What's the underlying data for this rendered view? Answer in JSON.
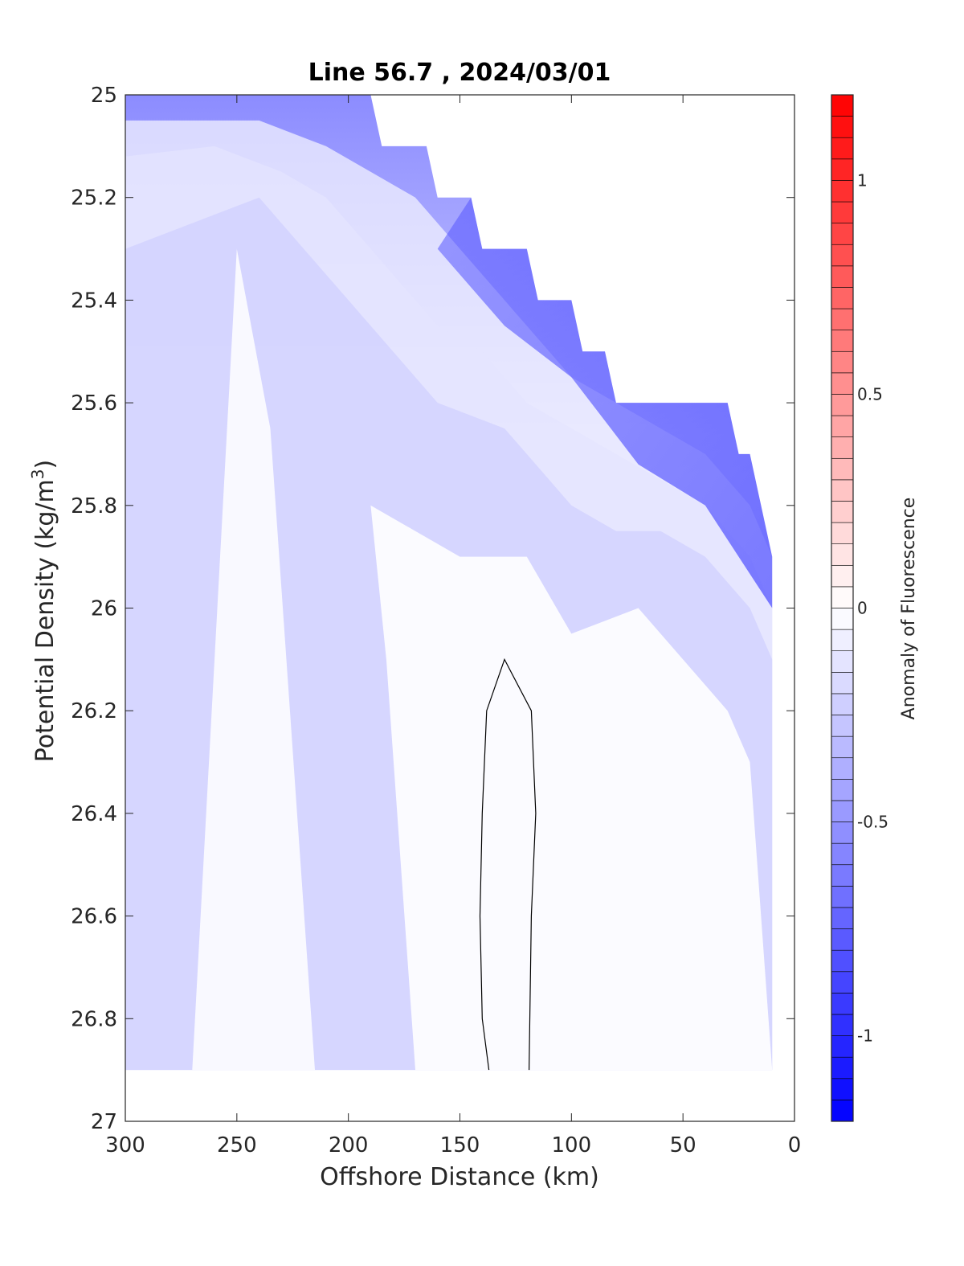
{
  "chart_data": {
    "type": "heatmap",
    "title": "Line 56.7 , 2024/03/01",
    "xlabel": "Offshore Distance (km)",
    "ylabel": "Potential Density (kg/m",
    "ylabel_sup": "3",
    "ylabel_end": ")",
    "xlim": [
      300,
      0
    ],
    "ylim": [
      25,
      27
    ],
    "x_ticks": [
      300,
      250,
      200,
      150,
      100,
      50,
      0
    ],
    "x_tick_labels": [
      "300",
      "250",
      "200",
      "150",
      "100",
      "50",
      "0"
    ],
    "y_ticks": [
      25,
      25.2,
      25.4,
      25.6,
      25.8,
      26,
      26.2,
      26.4,
      26.6,
      26.8,
      27
    ],
    "y_tick_labels": [
      "25",
      "25.2",
      "25.4",
      "25.6",
      "25.8",
      "26",
      "26.2",
      "26.4",
      "26.6",
      "26.8",
      "27"
    ],
    "colorbar": {
      "label": "Anomaly of Fluorescence",
      "range": [
        -1.2,
        1.2
      ],
      "ticks": [
        -1,
        -0.5,
        0,
        0.5,
        1
      ],
      "tick_labels": [
        "-1",
        "-0.5",
        "0",
        "0.5",
        "1"
      ],
      "levels": 48,
      "low_color": "#0000ff",
      "mid_color": "#ffffff",
      "high_color": "#ff0000"
    },
    "data_extent": {
      "surface_boundary": [
        [
          300,
          25.0
        ],
        [
          190,
          25.0
        ],
        [
          185,
          25.1
        ],
        [
          165,
          25.1
        ],
        [
          160,
          25.2
        ],
        [
          145,
          25.2
        ],
        [
          140,
          25.3
        ],
        [
          120,
          25.3
        ],
        [
          115,
          25.4
        ],
        [
          100,
          25.4
        ],
        [
          95,
          25.5
        ],
        [
          85,
          25.5
        ],
        [
          80,
          25.6
        ],
        [
          65,
          25.6
        ],
        [
          30,
          25.6
        ],
        [
          25,
          25.7
        ],
        [
          20,
          25.7
        ],
        [
          10,
          25.9
        ],
        [
          10,
          26.1
        ]
      ],
      "deep_limit": 26.9
    },
    "contours": [
      {
        "level": -0.05,
        "x": [
          300,
          240,
          220,
          210,
          200,
          180,
          160,
          130,
          110,
          100,
          80,
          60,
          40,
          30,
          20,
          10
        ],
        "y": [
          25.3,
          25.2,
          25.3,
          25.35,
          25.4,
          25.5,
          25.6,
          25.65,
          25.75,
          25.8,
          25.85,
          25.85,
          25.9,
          25.95,
          26.0,
          26.1
        ]
      },
      {
        "level": -0.1,
        "x": [
          300,
          260,
          230,
          210,
          200,
          180,
          160,
          140,
          120,
          100,
          80,
          60,
          40,
          30,
          20,
          10
        ],
        "y": [
          25.12,
          25.1,
          25.15,
          25.2,
          25.25,
          25.35,
          25.45,
          25.5,
          25.6,
          25.65,
          25.7,
          25.75,
          25.8,
          25.85,
          25.9,
          26.0
        ]
      },
      {
        "level": -0.2,
        "x": [
          300,
          270,
          240,
          210,
          190,
          170,
          150,
          130,
          110,
          100,
          80,
          60,
          40,
          30,
          20,
          10
        ],
        "y": [
          25.05,
          25.05,
          25.05,
          25.1,
          25.15,
          25.2,
          25.3,
          25.4,
          25.5,
          25.55,
          25.6,
          25.65,
          25.7,
          25.75,
          25.8,
          25.9
        ]
      }
    ],
    "zero_contour": {
      "x": [
        137,
        140,
        141,
        140,
        138,
        130,
        118,
        116,
        118,
        119
      ],
      "y": [
        26.9,
        26.8,
        26.6,
        26.4,
        26.2,
        26.1,
        26.2,
        26.4,
        26.6,
        26.9
      ]
    }
  }
}
